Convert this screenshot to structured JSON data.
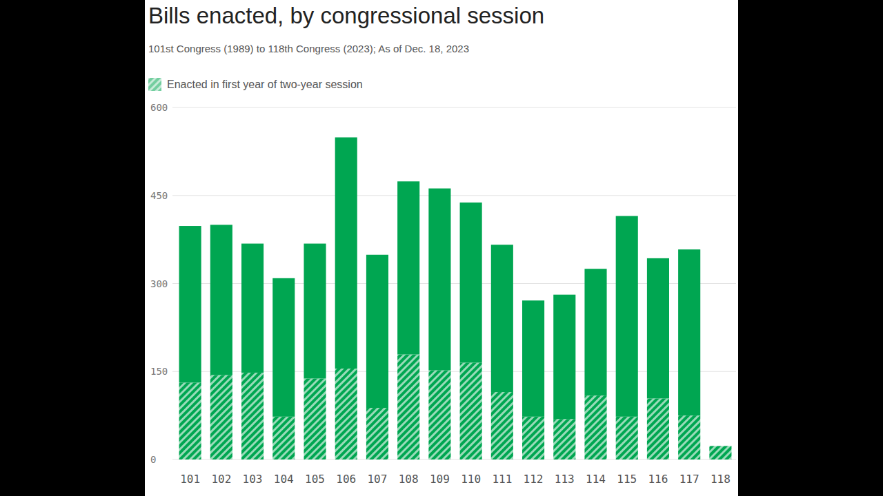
{
  "chart_data": {
    "type": "bar",
    "title": "Bills enacted, by congressional session",
    "subtitle": "101st Congress (1989) to 118th Congress (2023); As of Dec. 18, 2023",
    "categories": [
      "101",
      "102",
      "103",
      "104",
      "105",
      "106",
      "107",
      "108",
      "109",
      "110",
      "111",
      "112",
      "113",
      "114",
      "115",
      "116",
      "117",
      "118"
    ],
    "series": [
      {
        "name": "Enacted in first year of two-year session",
        "color": "#00a651",
        "values": [
          131,
          144,
          148,
          73,
          138,
          155,
          88,
          179,
          152,
          165,
          115,
          73,
          69,
          109,
          73,
          104,
          75,
          23
        ]
      },
      {
        "color": "#00a651",
        "values": [
          267,
          256,
          220,
          236,
          230,
          394,
          261,
          295,
          310,
          273,
          251,
          198,
          212,
          216,
          342,
          239,
          283,
          0
        ]
      }
    ],
    "stacked": true,
    "ylim": [
      0,
      600
    ],
    "yticks": [
      0,
      150,
      300,
      450,
      600
    ],
    "grid": true,
    "legend": "top-left"
  }
}
